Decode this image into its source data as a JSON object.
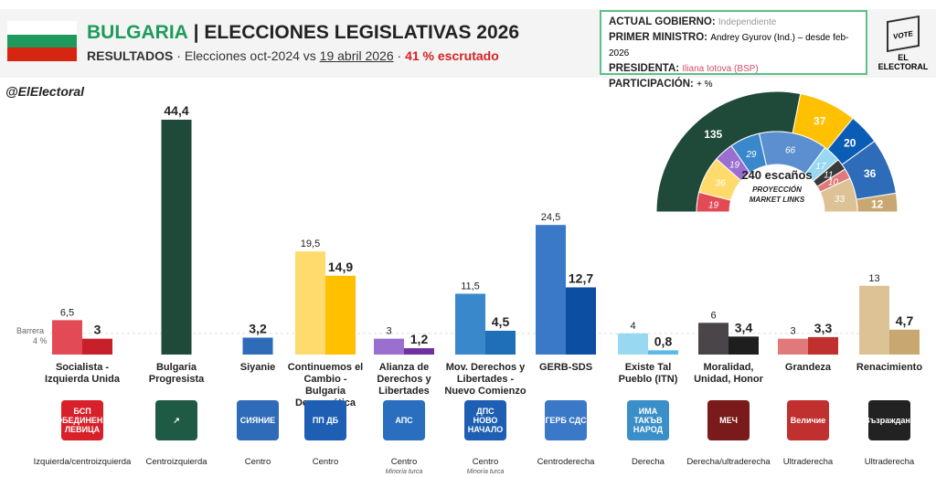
{
  "header": {
    "country": "BULGARIA",
    "title": "| ELECCIONES LEGISLATIVAS 2026",
    "results": "RESULTADOS",
    "sub1": " · Elecciones oct-2024 vs ",
    "date": "19 abril 2026",
    "sub2": " · ",
    "counted": "41 % escrutado"
  },
  "info": {
    "gov_label": "ACTUAL GOBIERNO:",
    "gov": "Independiente",
    "pm_label": "PRIMER MINISTRO:",
    "pm": "Andrey Gyurov (Ind.) – desde feb-2026",
    "pres_label": "PRESIDENTA:",
    "pres": "Iliana Iotova (BSP)",
    "part_label": "PARTICIPACIÓN:",
    "part": "+ %"
  },
  "logo": {
    "vote": "VOTE",
    "brand": "EL ELECTORAL"
  },
  "handle": "@ElElectoral",
  "barrera": {
    "label": "Barrera",
    "value": "4 %"
  },
  "chart_data": {
    "type": "bar",
    "ylim": [
      0,
      46
    ],
    "threshold": 4,
    "series": [
      {
        "name": "oct-2024"
      },
      {
        "name": "19 abril 2026"
      }
    ],
    "parties": [
      {
        "name": "Socialista - Izquierda Unida",
        "ideology": "Izquierda/centroizquierda",
        "note": "",
        "logo": "БСП ОБЕДИНЕНА ЛЕВИЦА",
        "old": 6.5,
        "new": 3,
        "c_old": "#e24b55",
        "c_new": "#c8202a",
        "logo_bg": "#d8202a"
      },
      {
        "name": "Bulgaria Progresista",
        "ideology": "Centroizquierda",
        "note": "",
        "logo": "↗",
        "old": null,
        "new": 44.4,
        "c_old": "#1f4a3a",
        "c_new": "#1f4a3a",
        "logo_bg": "#1f5a44"
      },
      {
        "name": "Siyanie",
        "ideology": "Centro",
        "note": "",
        "logo": "СИЯНИЕ",
        "old": null,
        "new": 3.2,
        "c_old": "#2e6bb8",
        "c_new": "#2e6bb8",
        "logo_bg": "#2e6bb8"
      },
      {
        "name": "Continuemos el Cambio - Bulgaria Democrática",
        "ideology": "Centro",
        "note": "",
        "logo": "ПП ДБ",
        "old": 19.5,
        "new": 14.9,
        "c_old": "#ffdb6e",
        "c_new": "#ffc000",
        "logo_bg": "#1e5fb3"
      },
      {
        "name": "Alianza de Derechos y Libertades",
        "ideology": "Centro",
        "note": "Minoría turca",
        "logo": "АПС",
        "old": 3,
        "new": 1.2,
        "c_old": "#9b6fd0",
        "c_new": "#7030a0",
        "logo_bg": "#2a6ec0"
      },
      {
        "name": "Mov. Derechos y Libertades - Nuevo Comienzo",
        "ideology": "Centro",
        "note": "Minoría turca",
        "logo": "ДПС НОВО НАЧАЛО",
        "old": 11.5,
        "new": 4.5,
        "c_old": "#3a88cc",
        "c_new": "#1f6fb8",
        "logo_bg": "#1e5fb3"
      },
      {
        "name": "GERB-SDS",
        "ideology": "Centroderecha",
        "note": "",
        "logo": "ГЕРБ СДС",
        "old": 24.5,
        "new": 12.7,
        "c_old": "#3a78c8",
        "c_new": "#0b4ea2",
        "logo_bg": "#3a78c8"
      },
      {
        "name": "Existe Tal Pueblo (ITN)",
        "ideology": "Derecha",
        "note": "",
        "logo": "ИМА ТАКЪВ НАРОД",
        "old": 4,
        "new": 0.8,
        "c_old": "#98d8f0",
        "c_new": "#5bbbe6",
        "logo_bg": "#3a8fc8"
      },
      {
        "name": "Moralidad, Unidad, Honor",
        "ideology": "Derecha/ultraderecha",
        "note": "",
        "logo": "МЕЧ",
        "old": 6,
        "new": 3.4,
        "c_old": "#4a4548",
        "c_new": "#1e1e1e",
        "logo_bg": "#7a1a1a"
      },
      {
        "name": "Grandeza",
        "ideology": "Ultraderecha",
        "note": "",
        "logo": "Величие",
        "old": 3,
        "new": 3.3,
        "c_old": "#e07a7a",
        "c_new": "#c0302e",
        "logo_bg": "#c0302e"
      },
      {
        "name": "Renacimiento",
        "ideology": "Ultraderecha",
        "note": "",
        "logo": "Възраждане",
        "old": 13,
        "new": 4.7,
        "c_old": "#dcc294",
        "c_new": "#c8a870",
        "logo_bg": "#222"
      }
    ]
  },
  "hemicycle": {
    "total": "240 escaños",
    "l1": "PROYECCIÓN",
    "l2": "MARKET LINKS",
    "outer": [
      {
        "v": 135,
        "c": "#1f4a3a"
      },
      {
        "v": 37,
        "c": "#ffc000"
      },
      {
        "v": 20,
        "c": "#0b5cb4"
      },
      {
        "v": 36,
        "c": "#2e6bb8"
      },
      {
        "v": 12,
        "c": "#c8a870"
      }
    ],
    "inner": [
      {
        "v": 19,
        "c": "#e24b55"
      },
      {
        "v": 36,
        "c": "#ffdb6e"
      },
      {
        "v": 19,
        "c": "#9b6fd0"
      },
      {
        "v": 29,
        "c": "#3a88cc"
      },
      {
        "v": 66,
        "c": "#5b8fcf"
      },
      {
        "v": 17,
        "c": "#98d8f0"
      },
      {
        "v": 11,
        "c": "#3a3a3a"
      },
      {
        "v": 10,
        "c": "#e07a7a"
      },
      {
        "v": 33,
        "c": "#dcc294"
      }
    ]
  }
}
